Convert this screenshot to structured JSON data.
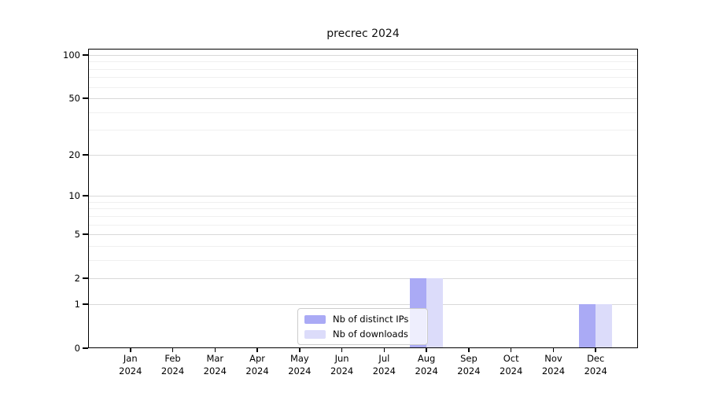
{
  "chart_data": {
    "type": "bar",
    "title": "precrec 2024",
    "categories": [
      {
        "month": "Jan",
        "year": "2024"
      },
      {
        "month": "Feb",
        "year": "2024"
      },
      {
        "month": "Mar",
        "year": "2024"
      },
      {
        "month": "Apr",
        "year": "2024"
      },
      {
        "month": "May",
        "year": "2024"
      },
      {
        "month": "Jun",
        "year": "2024"
      },
      {
        "month": "Jul",
        "year": "2024"
      },
      {
        "month": "Aug",
        "year": "2024"
      },
      {
        "month": "Sep",
        "year": "2024"
      },
      {
        "month": "Oct",
        "year": "2024"
      },
      {
        "month": "Nov",
        "year": "2024"
      },
      {
        "month": "Dec",
        "year": "2024"
      }
    ],
    "series": [
      {
        "name": "Nb of distinct IPs",
        "color": "#aaaaf5",
        "values": [
          0,
          0,
          0,
          0,
          0,
          0,
          0,
          2,
          0,
          0,
          0,
          1
        ]
      },
      {
        "name": "Nb of downloads",
        "color": "#dcdcfa",
        "values": [
          0,
          0,
          0,
          0,
          0,
          0,
          0,
          2,
          0,
          0,
          0,
          1
        ]
      }
    ],
    "xlabel": "",
    "ylabel": "",
    "yscale": "log1p",
    "ylim": [
      0,
      100
    ],
    "yticks": [
      0,
      1,
      2,
      5,
      10,
      20,
      50,
      100
    ],
    "yticks_minor": [
      3,
      4,
      6,
      7,
      8,
      9,
      30,
      40,
      60,
      70,
      80,
      90
    ],
    "grid": "horizontal",
    "legend_position": "bottom-center-inside"
  }
}
